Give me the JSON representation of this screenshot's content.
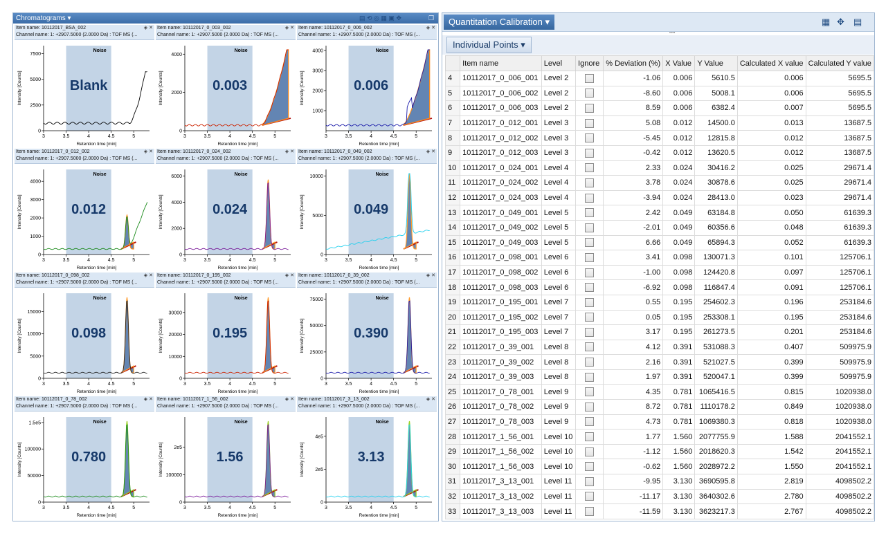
{
  "chromatograms": {
    "title": "Chromatograms",
    "xlabel": "Retention time [min]",
    "ylabel": "Intensity [Counts]",
    "noise_label": "Noise",
    "x_ticks": [
      "3",
      "3.5",
      "4",
      "4.5",
      "5"
    ],
    "panels": [
      {
        "item": "Item name: 10112017_BSA_002",
        "channel": "Channel name: 1: +2907.5000 (2.0000 Da) : TOF MS (...",
        "label": "Blank",
        "y_ticks": [
          "0",
          "2500",
          "5000",
          "7500"
        ],
        "ymax": 8000,
        "color": "#000000",
        "peak": 0
      },
      {
        "item": "Item name: 10112017_0_003_002",
        "channel": "Channel name: 1: +2907.5000 (2.0000 Da) : TOF MS (...",
        "label": "0.003",
        "y_ticks": [
          "0",
          "2000",
          "4000"
        ],
        "ymax": 4300,
        "color": "#cc2200",
        "peak": 1
      },
      {
        "item": "Item name: 10112017_0_006_002",
        "channel": "Channel name: 1: +2907.5000 (2.0000 Da) : TOF MS (...",
        "label": "0.006",
        "y_ticks": [
          "1000",
          "2000",
          "3000",
          "4000"
        ],
        "ymax": 4100,
        "color": "#1a1aaa",
        "peak": 1
      },
      {
        "item": "Item name: 10112017_0_012_002",
        "channel": "Channel name: 1: +2907.5000 (2.0000 Da) : TOF MS (...",
        "label": "0.012",
        "y_ticks": [
          "0",
          "1000",
          "2000",
          "3000",
          "4000"
        ],
        "ymax": 4500,
        "color": "#1a8a1a",
        "peak": 2
      },
      {
        "item": "Item name: 10112017_0_024_002",
        "channel": "Channel name: 1: +2907.5000 (2.0000 Da) : TOF MS (...",
        "label": "0.024",
        "y_ticks": [
          "0",
          "2000",
          "4000",
          "6000"
        ],
        "ymax": 6300,
        "color": "#7a1a9a",
        "peak": 3
      },
      {
        "item": "Item name: 10112017_0_049_002",
        "channel": "Channel name: 1: +2907.5000 (2.0000 Da) : TOF MS (...",
        "label": "0.049",
        "y_ticks": [
          "0",
          "5000",
          "10000"
        ],
        "ymax": 10500,
        "color": "#22d0ee",
        "peak": 4
      },
      {
        "item": "Item name: 10112017_0_098_002",
        "channel": "Channel name: 1: +2907.5000 (2.0000 Da) : TOF MS (...",
        "label": "0.098",
        "y_ticks": [
          "0",
          "5000",
          "10000",
          "15000"
        ],
        "ymax": 18500,
        "color": "#222222",
        "peak": 4
      },
      {
        "item": "Item name: 10112017_0_195_002",
        "channel": "Channel name: 1: +2907.5000 (2.0000 Da) : TOF MS (...",
        "label": "0.195",
        "y_ticks": [
          "0",
          "10000",
          "20000",
          "30000"
        ],
        "ymax": 37500,
        "color": "#cc2200",
        "peak": 4
      },
      {
        "item": "Item name: 10112017_0_39_002",
        "channel": "Channel name: 1: +2907.5000 (2.0000 Da) : TOF MS (...",
        "label": "0.390",
        "y_ticks": [
          "0",
          "25000",
          "50000",
          "75000"
        ],
        "ymax": 78000,
        "color": "#1a1aaa",
        "peak": 4
      },
      {
        "item": "Item name: 10112017_0_78_002",
        "channel": "Channel name: 1: +2907.5000 (2.0000 Da) : TOF MS (...",
        "label": "0.780",
        "y_ticks": [
          "0",
          "50000",
          "100000",
          "1.5e5"
        ],
        "ymax": 155000,
        "color": "#1a8a1a",
        "peak": 5
      },
      {
        "item": "Item name: 10112017_1_56_002",
        "channel": "Channel name: 1: +2907.5000 (2.0000 Da) : TOF MS (...",
        "label": "1.56",
        "y_ticks": [
          "0",
          "100000",
          "2e5"
        ],
        "ymax": 300000,
        "color": "#7a1a9a",
        "peak": 5
      },
      {
        "item": "Item name: 10112017_3_13_002",
        "channel": "Channel name: 1: +2907.5000 (2.0000 Da) : TOF MS (...",
        "label": "3.13",
        "y_ticks": [
          "0",
          "2e5",
          "4e5"
        ],
        "ymax": 500000,
        "color": "#22d0ee",
        "peak": 5
      }
    ]
  },
  "quant": {
    "title": "Quantitation Calibration",
    "tab": "Individual Points",
    "columns": [
      "",
      "Item name",
      "Level",
      "Ignore",
      "% Deviation (%)",
      "X Value",
      "Y Value",
      "Calculated X value",
      "Calculated Y value"
    ],
    "rows": [
      [
        "4",
        "10112017_0_006_001",
        "Level 2",
        "-1.06",
        "0.006",
        "5610.5",
        "0.006",
        "5695.5"
      ],
      [
        "5",
        "10112017_0_006_002",
        "Level 2",
        "-8.60",
        "0.006",
        "5008.1",
        "0.006",
        "5695.5"
      ],
      [
        "6",
        "10112017_0_006_003",
        "Level 2",
        "8.59",
        "0.006",
        "6382.4",
        "0.007",
        "5695.5"
      ],
      [
        "7",
        "10112017_0_012_001",
        "Level 3",
        "5.08",
        "0.012",
        "14500.0",
        "0.013",
        "13687.5"
      ],
      [
        "8",
        "10112017_0_012_002",
        "Level 3",
        "-5.45",
        "0.012",
        "12815.8",
        "0.012",
        "13687.5"
      ],
      [
        "9",
        "10112017_0_012_003",
        "Level 3",
        "-0.42",
        "0.012",
        "13620.5",
        "0.012",
        "13687.5"
      ],
      [
        "10",
        "10112017_0_024_001",
        "Level 4",
        "2.33",
        "0.024",
        "30416.2",
        "0.025",
        "29671.4"
      ],
      [
        "11",
        "10112017_0_024_002",
        "Level 4",
        "3.78",
        "0.024",
        "30878.6",
        "0.025",
        "29671.4"
      ],
      [
        "12",
        "10112017_0_024_003",
        "Level 4",
        "-3.94",
        "0.024",
        "28413.0",
        "0.023",
        "29671.4"
      ],
      [
        "13",
        "10112017_0_049_001",
        "Level 5",
        "2.42",
        "0.049",
        "63184.8",
        "0.050",
        "61639.3"
      ],
      [
        "14",
        "10112017_0_049_002",
        "Level 5",
        "-2.01",
        "0.049",
        "60356.6",
        "0.048",
        "61639.3"
      ],
      [
        "15",
        "10112017_0_049_003",
        "Level 5",
        "6.66",
        "0.049",
        "65894.3",
        "0.052",
        "61639.3"
      ],
      [
        "16",
        "10112017_0_098_001",
        "Level 6",
        "3.41",
        "0.098",
        "130071.3",
        "0.101",
        "125706.1"
      ],
      [
        "17",
        "10112017_0_098_002",
        "Level 6",
        "-1.00",
        "0.098",
        "124420.8",
        "0.097",
        "125706.1"
      ],
      [
        "18",
        "10112017_0_098_003",
        "Level 6",
        "-6.92",
        "0.098",
        "116847.4",
        "0.091",
        "125706.1"
      ],
      [
        "19",
        "10112017_0_195_001",
        "Level 7",
        "0.55",
        "0.195",
        "254602.3",
        "0.196",
        "253184.6"
      ],
      [
        "20",
        "10112017_0_195_002",
        "Level 7",
        "0.05",
        "0.195",
        "253308.1",
        "0.195",
        "253184.6"
      ],
      [
        "21",
        "10112017_0_195_003",
        "Level 7",
        "3.17",
        "0.195",
        "261273.5",
        "0.201",
        "253184.6"
      ],
      [
        "22",
        "10112017_0_39_001",
        "Level 8",
        "4.12",
        "0.391",
        "531088.3",
        "0.407",
        "509975.9"
      ],
      [
        "23",
        "10112017_0_39_002",
        "Level 8",
        "2.16",
        "0.391",
        "521027.5",
        "0.399",
        "509975.9"
      ],
      [
        "24",
        "10112017_0_39_003",
        "Level 8",
        "1.97",
        "0.391",
        "520047.1",
        "0.399",
        "509975.9"
      ],
      [
        "25",
        "10112017_0_78_001",
        "Level 9",
        "4.35",
        "0.781",
        "1065416.5",
        "0.815",
        "1020938.0"
      ],
      [
        "26",
        "10112017_0_78_002",
        "Level 9",
        "8.72",
        "0.781",
        "1110178.2",
        "0.849",
        "1020938.0"
      ],
      [
        "27",
        "10112017_0_78_003",
        "Level 9",
        "4.73",
        "0.781",
        "1069380.3",
        "0.818",
        "1020938.0"
      ],
      [
        "28",
        "10112017_1_56_001",
        "Level 10",
        "1.77",
        "1.560",
        "2077755.9",
        "1.588",
        "2041552.1"
      ],
      [
        "29",
        "10112017_1_56_002",
        "Level 10",
        "-1.12",
        "1.560",
        "2018620.3",
        "1.542",
        "2041552.1"
      ],
      [
        "30",
        "10112017_1_56_003",
        "Level 10",
        "-0.62",
        "1.560",
        "2028972.2",
        "1.550",
        "2041552.1"
      ],
      [
        "31",
        "10112017_3_13_001",
        "Level 11",
        "-9.95",
        "3.130",
        "3690595.8",
        "2.819",
        "4098502.2"
      ],
      [
        "32",
        "10112017_3_13_002",
        "Level 11",
        "-11.17",
        "3.130",
        "3640302.6",
        "2.780",
        "4098502.2"
      ],
      [
        "33",
        "10112017_3_13_003",
        "Level 11",
        "-11.59",
        "3.130",
        "3623217.3",
        "2.767",
        "4098502.2"
      ]
    ]
  }
}
